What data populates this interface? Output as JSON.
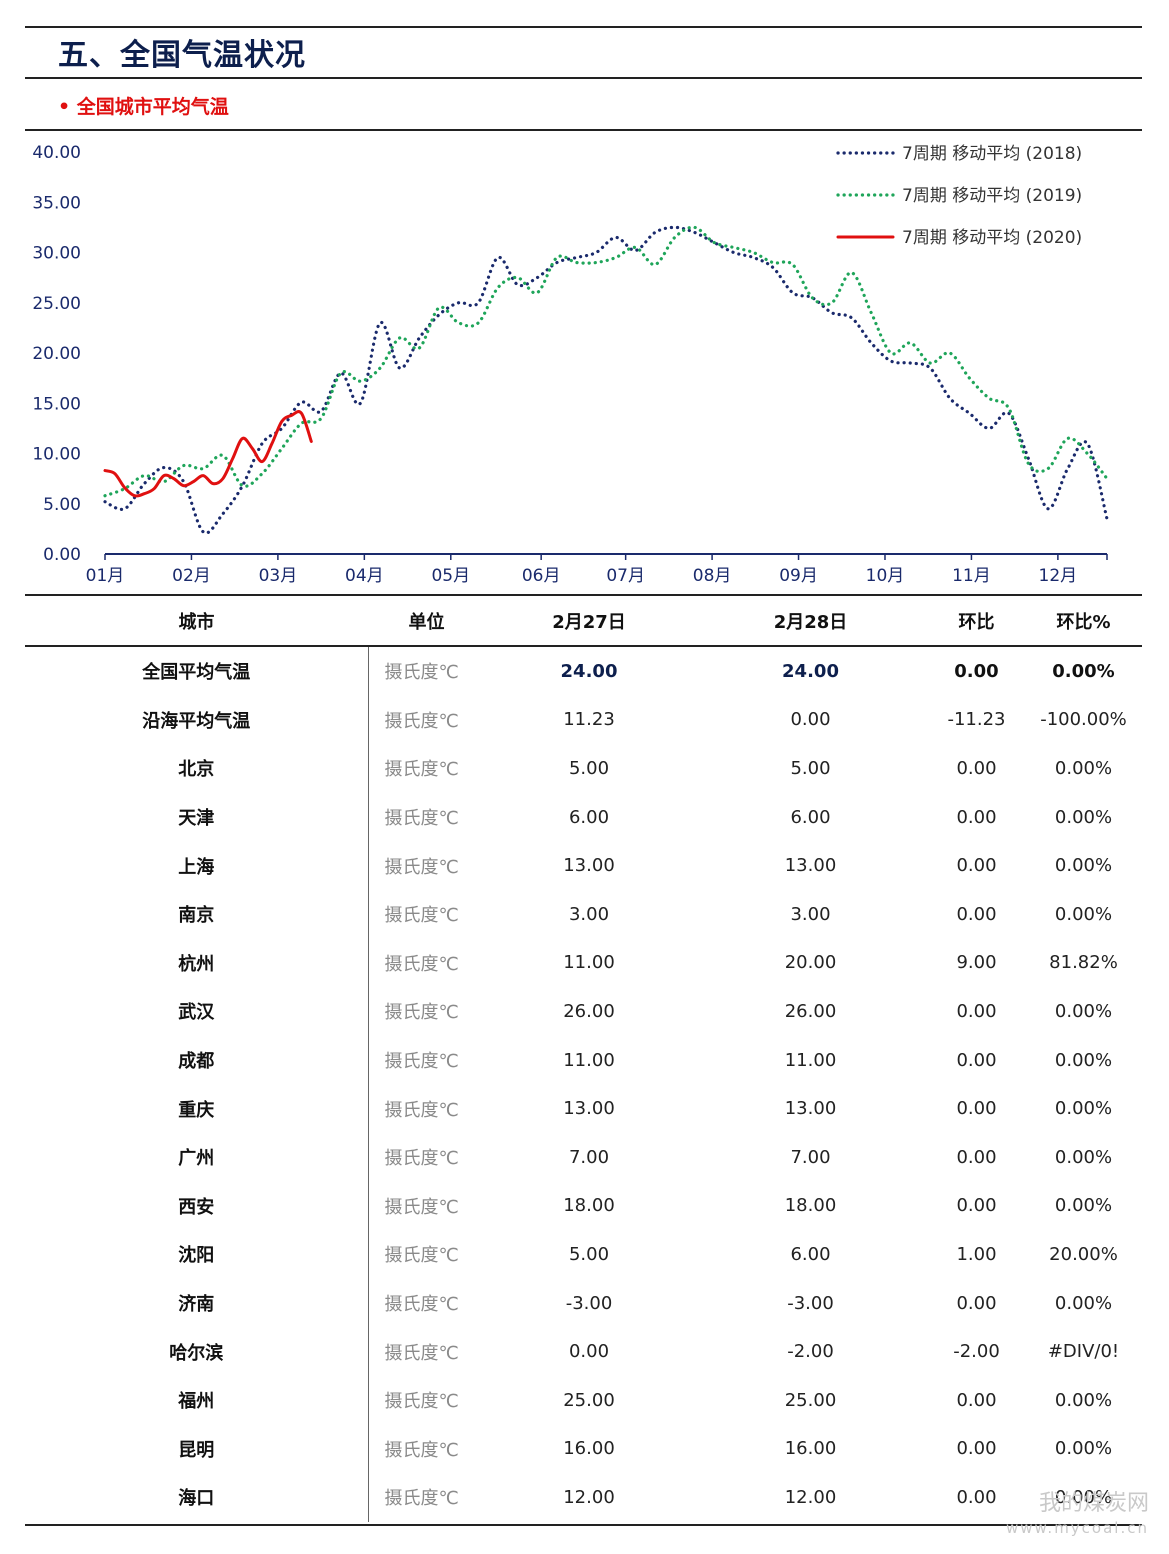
{
  "header": {
    "section_title": "五、全国气温状况",
    "sub_title": "• 全国城市平均气温"
  },
  "colors": {
    "title_navy": "#0d1f4d",
    "accent_red": "#e01010",
    "series_2018": "#1a2a6c",
    "series_2019": "#1fa55a",
    "series_2020": "#e01010"
  },
  "chart_data": {
    "type": "line",
    "title": "",
    "xlabel": "",
    "ylabel": "",
    "ylim": [
      0,
      40
    ],
    "yticks": [
      "40.00",
      "35.00",
      "30.00",
      "25.00",
      "20.00",
      "15.00",
      "10.00",
      "5.00",
      "0.00"
    ],
    "xticks": [
      "01月",
      "02月",
      "03月",
      "04月",
      "05月",
      "06月",
      "07月",
      "08月",
      "09月",
      "10月",
      "11月",
      "12月"
    ],
    "x_unit": "week of year",
    "legend_position": "top-right",
    "series": [
      {
        "name": "7周期 移动平均 (2018)",
        "style": "dotted",
        "color": "#1a2a6c",
        "x": [
          1,
          2,
          3,
          4,
          5,
          6,
          7,
          8,
          9,
          10,
          11,
          12,
          13,
          14,
          15,
          16,
          17,
          18,
          19,
          20,
          21,
          22,
          23,
          24,
          25,
          26,
          27,
          28,
          29,
          30,
          31,
          32,
          33,
          34,
          35,
          36,
          37,
          38,
          39,
          40,
          41,
          42,
          43,
          44,
          45,
          46,
          47,
          48,
          49,
          50,
          51,
          52
        ],
        "values": [
          5.2,
          4.5,
          7.0,
          8.6,
          7.2,
          2.2,
          4.0,
          6.8,
          11.0,
          12.5,
          15.1,
          14.2,
          18.0,
          15.0,
          23.0,
          18.5,
          21.5,
          23.8,
          25.0,
          25.0,
          29.5,
          26.8,
          27.5,
          29.0,
          29.5,
          30.0,
          31.5,
          30.2,
          32.0,
          32.5,
          32.0,
          31.0,
          30.0,
          29.5,
          28.5,
          26.0,
          25.5,
          24.0,
          23.5,
          21.0,
          19.2,
          19.0,
          18.5,
          15.5,
          14.0,
          12.5,
          14.0,
          9.5,
          4.5,
          8.5,
          11.0,
          3.5
        ]
      },
      {
        "name": "7周期 移动平均 (2019)",
        "style": "dotted",
        "color": "#1fa55a",
        "x": [
          1,
          2,
          3,
          4,
          5,
          6,
          7,
          8,
          9,
          10,
          11,
          12,
          13,
          14,
          15,
          16,
          17,
          18,
          19,
          20,
          21,
          22,
          23,
          24,
          25,
          26,
          27,
          28,
          29,
          30,
          31,
          32,
          33,
          34,
          35,
          36,
          37,
          38,
          39,
          40,
          41,
          42,
          43,
          44,
          45,
          46,
          47,
          48,
          49,
          50,
          51,
          52
        ],
        "values": [
          5.8,
          6.5,
          7.8,
          7.2,
          8.8,
          8.5,
          9.8,
          6.8,
          8.0,
          10.5,
          13.0,
          13.5,
          18.0,
          17.2,
          18.5,
          21.5,
          20.5,
          24.5,
          23.0,
          23.0,
          26.5,
          27.5,
          26.0,
          29.5,
          29.0,
          29.0,
          29.5,
          30.5,
          28.8,
          31.5,
          32.5,
          31.0,
          30.5,
          30.0,
          29.0,
          28.8,
          25.5,
          25.0,
          28.0,
          24.0,
          20.0,
          21.0,
          19.0,
          20.0,
          17.5,
          15.5,
          14.5,
          9.0,
          8.5,
          11.5,
          10.0,
          7.5
        ]
      },
      {
        "name": "7周期 移动平均 (2020)",
        "style": "solid",
        "color": "#e01010",
        "x": [
          1,
          1.5,
          2,
          2.5,
          3,
          3.5,
          4,
          4.5,
          5,
          5.5,
          6,
          6.5,
          7,
          7.5,
          8,
          8.5,
          9,
          9.5,
          10,
          10.5,
          11,
          11.5
        ],
        "values": [
          8.3,
          8.0,
          6.6,
          5.8,
          6.0,
          6.5,
          7.8,
          7.5,
          6.8,
          7.2,
          7.8,
          7.0,
          7.5,
          9.5,
          11.5,
          10.5,
          9.2,
          11.0,
          13.2,
          13.8,
          14.0,
          11.2
        ]
      }
    ]
  },
  "table": {
    "headers": [
      "城市",
      "单位",
      "2月27日",
      "2月28日",
      "环比",
      "环比%"
    ],
    "rows": [
      {
        "city": "全国平均气温",
        "unit": "摄氏度℃",
        "d1": "24.00",
        "d2": "24.00",
        "chg": "0.00",
        "pct": "0.00%"
      },
      {
        "city": "沿海平均气温",
        "unit": "摄氏度℃",
        "d1": "11.23",
        "d2": "0.00",
        "chg": "-11.23",
        "pct": "-100.00%"
      },
      {
        "city": "北京",
        "unit": "摄氏度℃",
        "d1": "5.00",
        "d2": "5.00",
        "chg": "0.00",
        "pct": "0.00%"
      },
      {
        "city": "天津",
        "unit": "摄氏度℃",
        "d1": "6.00",
        "d2": "6.00",
        "chg": "0.00",
        "pct": "0.00%"
      },
      {
        "city": "上海",
        "unit": "摄氏度℃",
        "d1": "13.00",
        "d2": "13.00",
        "chg": "0.00",
        "pct": "0.00%"
      },
      {
        "city": "南京",
        "unit": "摄氏度℃",
        "d1": "3.00",
        "d2": "3.00",
        "chg": "0.00",
        "pct": "0.00%"
      },
      {
        "city": "杭州",
        "unit": "摄氏度℃",
        "d1": "11.00",
        "d2": "20.00",
        "chg": "9.00",
        "pct": "81.82%"
      },
      {
        "city": "武汉",
        "unit": "摄氏度℃",
        "d1": "26.00",
        "d2": "26.00",
        "chg": "0.00",
        "pct": "0.00%"
      },
      {
        "city": "成都",
        "unit": "摄氏度℃",
        "d1": "11.00",
        "d2": "11.00",
        "chg": "0.00",
        "pct": "0.00%"
      },
      {
        "city": "重庆",
        "unit": "摄氏度℃",
        "d1": "13.00",
        "d2": "13.00",
        "chg": "0.00",
        "pct": "0.00%"
      },
      {
        "city": "广州",
        "unit": "摄氏度℃",
        "d1": "7.00",
        "d2": "7.00",
        "chg": "0.00",
        "pct": "0.00%"
      },
      {
        "city": "西安",
        "unit": "摄氏度℃",
        "d1": "18.00",
        "d2": "18.00",
        "chg": "0.00",
        "pct": "0.00%"
      },
      {
        "city": "沈阳",
        "unit": "摄氏度℃",
        "d1": "5.00",
        "d2": "6.00",
        "chg": "1.00",
        "pct": "20.00%"
      },
      {
        "city": "济南",
        "unit": "摄氏度℃",
        "d1": "-3.00",
        "d2": "-3.00",
        "chg": "0.00",
        "pct": "0.00%"
      },
      {
        "city": "哈尔滨",
        "unit": "摄氏度℃",
        "d1": "0.00",
        "d2": "-2.00",
        "chg": "-2.00",
        "pct": "#DIV/0!"
      },
      {
        "city": "福州",
        "unit": "摄氏度℃",
        "d1": "25.00",
        "d2": "25.00",
        "chg": "0.00",
        "pct": "0.00%"
      },
      {
        "city": "昆明",
        "unit": "摄氏度℃",
        "d1": "16.00",
        "d2": "16.00",
        "chg": "0.00",
        "pct": "0.00%"
      },
      {
        "city": "海口",
        "unit": "摄氏度℃",
        "d1": "12.00",
        "d2": "12.00",
        "chg": "0.00",
        "pct": "0.00%"
      }
    ]
  },
  "watermark": {
    "brand": "我的煤炭网",
    "url": "www.mycoal.cn"
  }
}
